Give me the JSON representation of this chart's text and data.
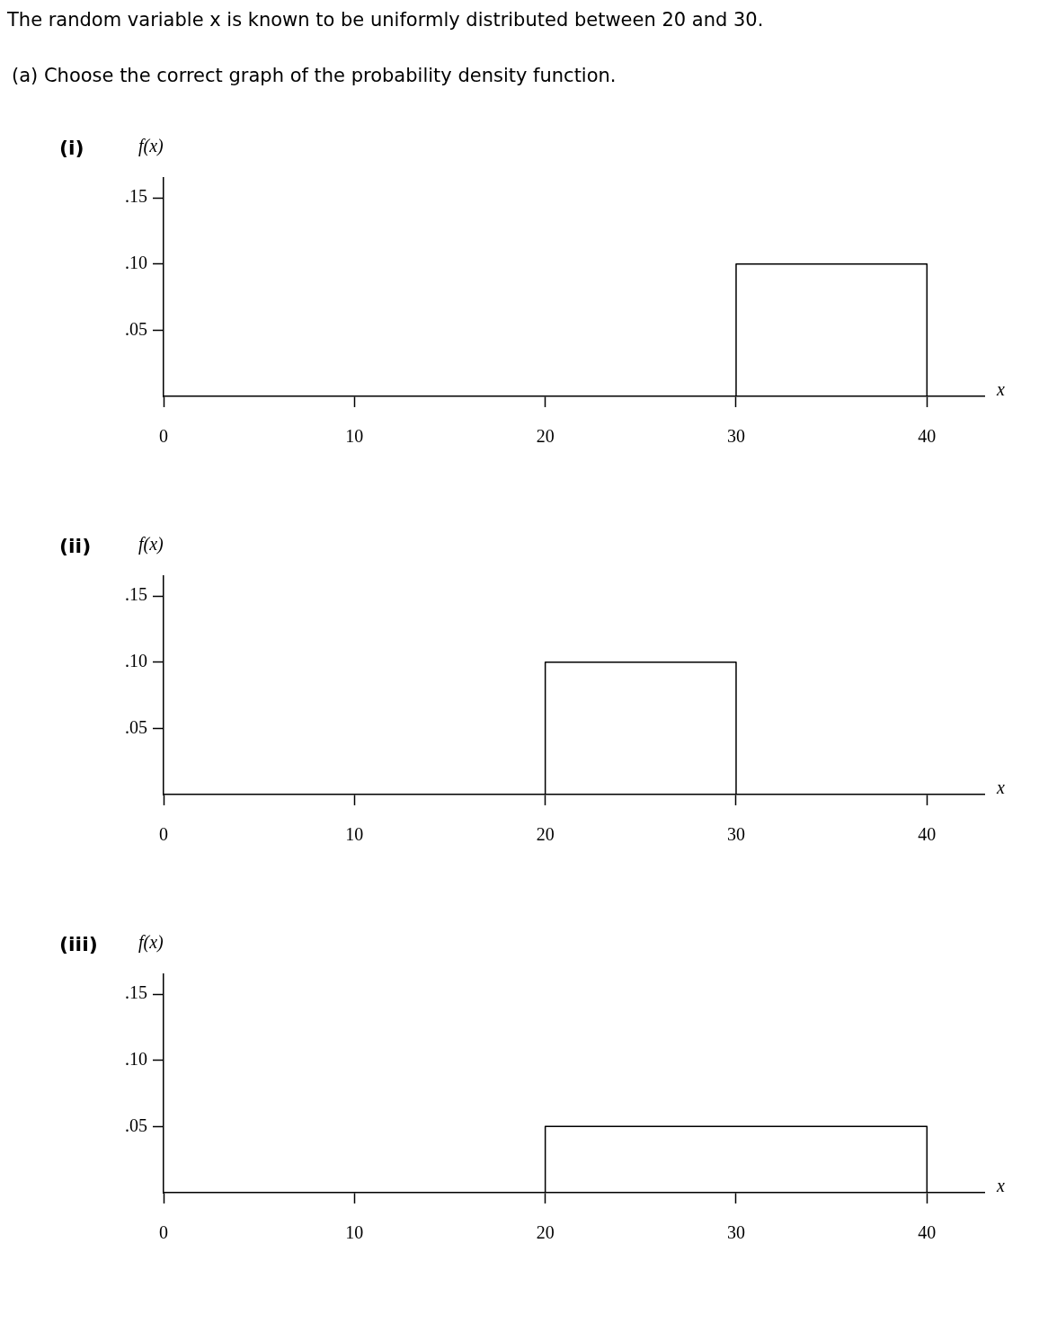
{
  "chart_data": [
    {
      "type": "line",
      "title": "(i)",
      "ylabel": "f(x)",
      "xlabel": "x",
      "annotations": [
        "The random variable x is known to be uniformly distributed between 20 and 30.",
        "(a) Choose the correct graph of the probability density function."
      ],
      "x": [
        30,
        30,
        40,
        40
      ],
      "values": [
        0,
        0.1,
        0.1,
        0
      ],
      "color": "#000000",
      "marker": "none",
      "xlim": [
        0,
        43
      ],
      "xticks": [
        0,
        10,
        20,
        30,
        40
      ],
      "ylim": [
        0,
        0.165
      ],
      "yticks": [
        {
          "value": 0.05,
          "label": ".05"
        },
        {
          "value": 0.1,
          "label": ".10"
        },
        {
          "value": 0.15,
          "label": ".15"
        }
      ],
      "grid": false
    },
    {
      "type": "line",
      "title": "(ii)",
      "ylabel": "f(x)",
      "xlabel": "x",
      "x": [
        20,
        20,
        30,
        30
      ],
      "values": [
        0,
        0.1,
        0.1,
        0
      ],
      "color": "#000000",
      "marker": "none",
      "xlim": [
        0,
        43
      ],
      "xticks": [
        0,
        10,
        20,
        30,
        40
      ],
      "ylim": [
        0,
        0.165
      ],
      "yticks": [
        {
          "value": 0.05,
          "label": ".05"
        },
        {
          "value": 0.1,
          "label": ".10"
        },
        {
          "value": 0.15,
          "label": ".15"
        }
      ],
      "grid": false
    },
    {
      "type": "line",
      "title": "(iii)",
      "ylabel": "f(x)",
      "xlabel": "x",
      "x": [
        20,
        20,
        40,
        40
      ],
      "values": [
        0,
        0.05,
        0.05,
        0
      ],
      "color": "#000000",
      "marker": "none",
      "xlim": [
        0,
        43
      ],
      "xticks": [
        0,
        10,
        20,
        30,
        40
      ],
      "ylim": [
        0,
        0.165
      ],
      "yticks": [
        {
          "value": 0.05,
          "label": ".05"
        },
        {
          "value": 0.1,
          "label": ".10"
        },
        {
          "value": 0.15,
          "label": ".15"
        }
      ],
      "grid": false
    }
  ]
}
